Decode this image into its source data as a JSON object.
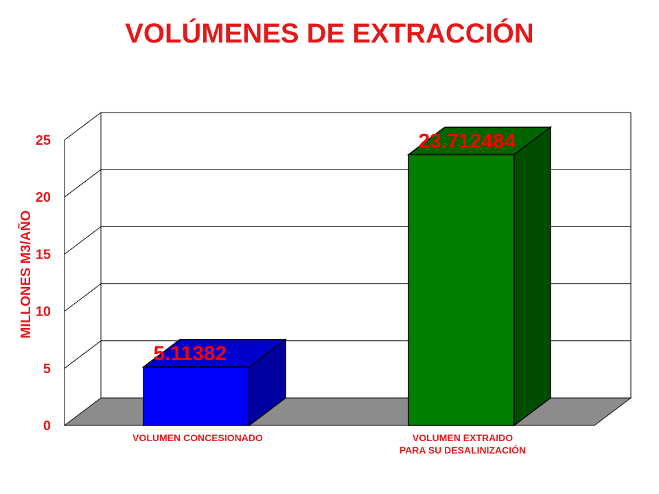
{
  "chart_data": {
    "type": "bar",
    "title": "VOLÚMENES DE EXTRACCIÓN",
    "ylabel": "MILLONES M3/AÑO",
    "xlabel": "",
    "ylim": [
      0,
      25
    ],
    "yticks": [
      "0",
      "5",
      "10",
      "15",
      "20",
      "25"
    ],
    "grid": true,
    "style": "3d",
    "categories": [
      [
        "VOLUMEN CONCESIONADO"
      ],
      [
        "VOLUMEN EXTRAIDO",
        "PARA SU DESALINIZACIÓN"
      ]
    ],
    "values": [
      5.11382,
      23.712484
    ],
    "data_labels": [
      "5.11382",
      "23.712484"
    ],
    "colors": {
      "bars": [
        {
          "front": "#0000ff",
          "top": "#0000cc",
          "side": "#0000a0"
        },
        {
          "front": "#008000",
          "top": "#006400",
          "side": "#004d00"
        }
      ],
      "text": "#e31a1c",
      "data_label": "#ff0000",
      "floor": "#8c8c8c",
      "grid": "#000000"
    }
  }
}
